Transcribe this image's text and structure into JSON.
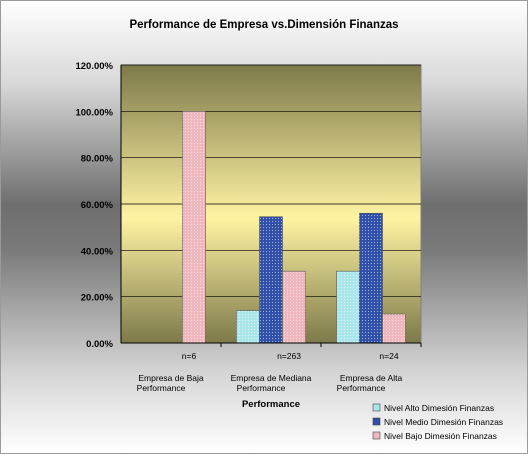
{
  "chart_data": {
    "type": "bar",
    "title": "Performance de Empresa vs.Dimensión Finanzas",
    "xlabel": "Performance",
    "ylabel": "",
    "ylim": [
      0,
      1.2
    ],
    "yticks": [
      "0.00%",
      "20.00%",
      "40.00%",
      "60.00%",
      "80.00%",
      "100.00%",
      "120.00%"
    ],
    "categories": [
      {
        "n": "n=6",
        "line1": "Empresa de Baja",
        "line2": "Performance"
      },
      {
        "n": "n=263",
        "line1": "Empresa de Mediana",
        "line2": "Performance"
      },
      {
        "n": "n=24",
        "line1": "Empresa de Alta",
        "line2": "Performance"
      }
    ],
    "series": [
      {
        "name": "Nivel Alto Dimesión Finanzas",
        "color": "#a8e6ea",
        "values": [
          0.0,
          0.14,
          0.31
        ]
      },
      {
        "name": "Nivel Medio Dimesión Finanzas",
        "color": "#2f4fa8",
        "values": [
          0.0,
          0.545,
          0.56
        ]
      },
      {
        "name": "Nivel Bajo Dimesión Finanzas",
        "color": "#efb7bd",
        "values": [
          1.0,
          0.31,
          0.125
        ]
      }
    ],
    "legend_position": "bottom-right",
    "grid": true,
    "plot_background": [
      "#7d7a4a",
      "#fff7b0"
    ]
  }
}
